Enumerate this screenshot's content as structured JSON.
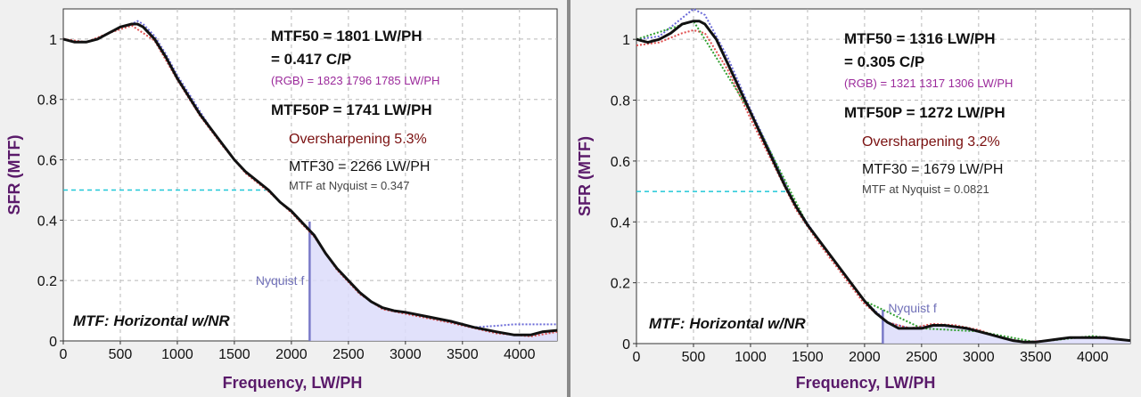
{
  "chart_data": [
    {
      "type": "line",
      "title": "MTF: Horizontal w/NR",
      "xlabel": "Frequency, LW/PH",
      "ylabel": "SFR (MTF)",
      "xlim": [
        0,
        4330
      ],
      "ylim": [
        0,
        1.1
      ],
      "xticks": [
        0,
        500,
        1000,
        1500,
        2000,
        2500,
        3000,
        3500,
        4000
      ],
      "yticks": [
        0,
        0.2,
        0.4,
        0.6,
        0.8,
        1
      ],
      "ytick_labels": [
        "0",
        "0.2",
        "0.4",
        "0.6",
        "0.8",
        "1"
      ],
      "mtf50_line": 0.5,
      "nyquist_freq": 2160,
      "nyquist_label": "Nyquist f",
      "annotations": {
        "mtf50": "MTF50 = 1801 LW/PH",
        "cp": "= 0.417 C/P",
        "rgb": "(RGB) = 1823  1796  1785 LW/PH",
        "mtf50p": "MTF50P = 1741 LW/PH",
        "oversharpening": "Oversharpening  5.3%",
        "mtf30": "MTF30 = 2266 LW/PH",
        "nyquist_mtf": "MTF at Nyquist = 0.347"
      },
      "series": [
        {
          "name": "luminance",
          "color": "#111111",
          "x": [
            0,
            100,
            200,
            300,
            400,
            500,
            600,
            650,
            700,
            800,
            900,
            1000,
            1100,
            1200,
            1300,
            1400,
            1500,
            1600,
            1700,
            1800,
            1900,
            2000,
            2100,
            2200,
            2300,
            2400,
            2500,
            2600,
            2700,
            2800,
            2900,
            3000,
            3200,
            3400,
            3600,
            3800,
            3950,
            4100,
            4200,
            4330
          ],
          "y": [
            1.0,
            0.99,
            0.99,
            1.0,
            1.02,
            1.04,
            1.05,
            1.05,
            1.04,
            1.0,
            0.94,
            0.87,
            0.81,
            0.75,
            0.7,
            0.65,
            0.6,
            0.56,
            0.53,
            0.5,
            0.46,
            0.43,
            0.39,
            0.35,
            0.29,
            0.24,
            0.2,
            0.16,
            0.13,
            0.11,
            0.1,
            0.095,
            0.08,
            0.065,
            0.045,
            0.03,
            0.02,
            0.02,
            0.03,
            0.035
          ]
        },
        {
          "name": "blue",
          "color": "#6a6ad8",
          "x": [
            0,
            100,
            200,
            300,
            400,
            500,
            600,
            650,
            700,
            800,
            900,
            1000,
            1100,
            1200,
            1300,
            1400,
            1500,
            1600,
            1700,
            1800,
            1900,
            2000,
            2100,
            2200,
            2300,
            2400,
            2500,
            2600,
            2700,
            2800,
            2900,
            3000,
            3200,
            3400,
            3600,
            3800,
            3950,
            4100,
            4200,
            4330
          ],
          "y": [
            1.0,
            0.99,
            0.99,
            1.0,
            1.02,
            1.04,
            1.05,
            1.06,
            1.05,
            1.01,
            0.95,
            0.88,
            0.82,
            0.76,
            0.7,
            0.65,
            0.6,
            0.56,
            0.53,
            0.5,
            0.46,
            0.43,
            0.39,
            0.35,
            0.29,
            0.24,
            0.2,
            0.16,
            0.13,
            0.11,
            0.1,
            0.095,
            0.08,
            0.065,
            0.045,
            0.05,
            0.055,
            0.055,
            0.055,
            0.055
          ]
        },
        {
          "name": "red",
          "color": "#e05050",
          "x": [
            0,
            200,
            400,
            600,
            800,
            1000,
            1200,
            1400,
            1600,
            1800,
            2000,
            2200,
            2400,
            2600,
            2800,
            3000,
            3400,
            3800,
            4100,
            4330
          ],
          "y": [
            1.0,
            0.99,
            1.02,
            1.045,
            0.995,
            0.865,
            0.745,
            0.645,
            0.555,
            0.495,
            0.425,
            0.345,
            0.235,
            0.155,
            0.105,
            0.09,
            0.06,
            0.025,
            0.015,
            0.03
          ]
        }
      ]
    },
    {
      "type": "line",
      "title": "MTF: Horizontal w/NR",
      "xlabel": "Frequency, LW/PH",
      "ylabel": "SFR (MTF)",
      "xlim": [
        0,
        4330
      ],
      "ylim": [
        0,
        1.1
      ],
      "xticks": [
        0,
        500,
        1000,
        1500,
        2000,
        2500,
        3000,
        3500,
        4000
      ],
      "yticks": [
        0,
        0.2,
        0.4,
        0.6,
        0.8,
        1
      ],
      "ytick_labels": [
        "0",
        "0.2",
        "0.4",
        "0.6",
        "0.8",
        "1"
      ],
      "mtf50_line": 0.5,
      "nyquist_freq": 2160,
      "nyquist_label": "Nyquist f",
      "annotations": {
        "mtf50": "MTF50 = 1316 LW/PH",
        "cp": "= 0.305 C/P",
        "rgb": "(RGB) = 1321  1317  1306 LW/PH",
        "mtf50p": "MTF50P = 1272 LW/PH",
        "oversharpening": "Oversharpening  3.2%",
        "mtf30": "MTF30 = 1679 LW/PH",
        "nyquist_mtf": "MTF at Nyquist = 0.0821"
      },
      "series": [
        {
          "name": "luminance",
          "color": "#111111",
          "x": [
            0,
            100,
            200,
            300,
            400,
            500,
            550,
            600,
            700,
            800,
            900,
            1000,
            1100,
            1200,
            1300,
            1400,
            1500,
            1600,
            1700,
            1800,
            1900,
            2000,
            2100,
            2200,
            2300,
            2400,
            2500,
            2600,
            2700,
            2800,
            2900,
            3000,
            3100,
            3200,
            3300,
            3400,
            3500,
            3600,
            3700,
            3800,
            3900,
            4000,
            4100,
            4200,
            4330
          ],
          "y": [
            1.0,
            0.99,
            1.0,
            1.02,
            1.05,
            1.06,
            1.06,
            1.05,
            1.0,
            0.92,
            0.84,
            0.76,
            0.68,
            0.6,
            0.52,
            0.45,
            0.39,
            0.34,
            0.29,
            0.24,
            0.19,
            0.14,
            0.1,
            0.07,
            0.05,
            0.05,
            0.05,
            0.06,
            0.06,
            0.055,
            0.05,
            0.04,
            0.03,
            0.02,
            0.01,
            0.005,
            0.005,
            0.01,
            0.015,
            0.02,
            0.02,
            0.02,
            0.02,
            0.015,
            0.01
          ]
        },
        {
          "name": "blue",
          "color": "#6a6ad8",
          "x": [
            0,
            200,
            400,
            500,
            600,
            800,
            1000,
            1200,
            1400,
            1600,
            1800,
            2000,
            2200,
            2400,
            2600,
            2800,
            3000,
            3200,
            3400,
            3600,
            3800,
            4000,
            4200,
            4330
          ],
          "y": [
            1.0,
            1.01,
            1.07,
            1.1,
            1.08,
            0.94,
            0.77,
            0.61,
            0.45,
            0.34,
            0.24,
            0.14,
            0.07,
            0.05,
            0.06,
            0.055,
            0.04,
            0.02,
            0.005,
            0.01,
            0.02,
            0.02,
            0.015,
            0.01
          ]
        },
        {
          "name": "red",
          "color": "#e05050",
          "x": [
            0,
            200,
            400,
            500,
            600,
            800,
            1000,
            1200,
            1400,
            1600,
            1800,
            2000,
            2200,
            2400,
            2600,
            2800,
            3000,
            3200,
            3400,
            3600,
            3800,
            4000,
            4200,
            4330
          ],
          "y": [
            0.98,
            0.99,
            1.02,
            1.03,
            1.02,
            0.9,
            0.74,
            0.59,
            0.44,
            0.33,
            0.23,
            0.13,
            0.07,
            0.05,
            0.065,
            0.06,
            0.045,
            0.02,
            0.005,
            0.01,
            0.02,
            0.02,
            0.015,
            0.01
          ]
        },
        {
          "name": "green",
          "color": "#30a030",
          "x": [
            0,
            500,
            1000,
            1500,
            2000,
            2500,
            3000,
            3500,
            4000,
            4330
          ],
          "y": [
            1.0,
            1.06,
            0.76,
            0.39,
            0.14,
            0.05,
            0.04,
            0.005,
            0.025,
            0.01
          ]
        }
      ]
    }
  ]
}
